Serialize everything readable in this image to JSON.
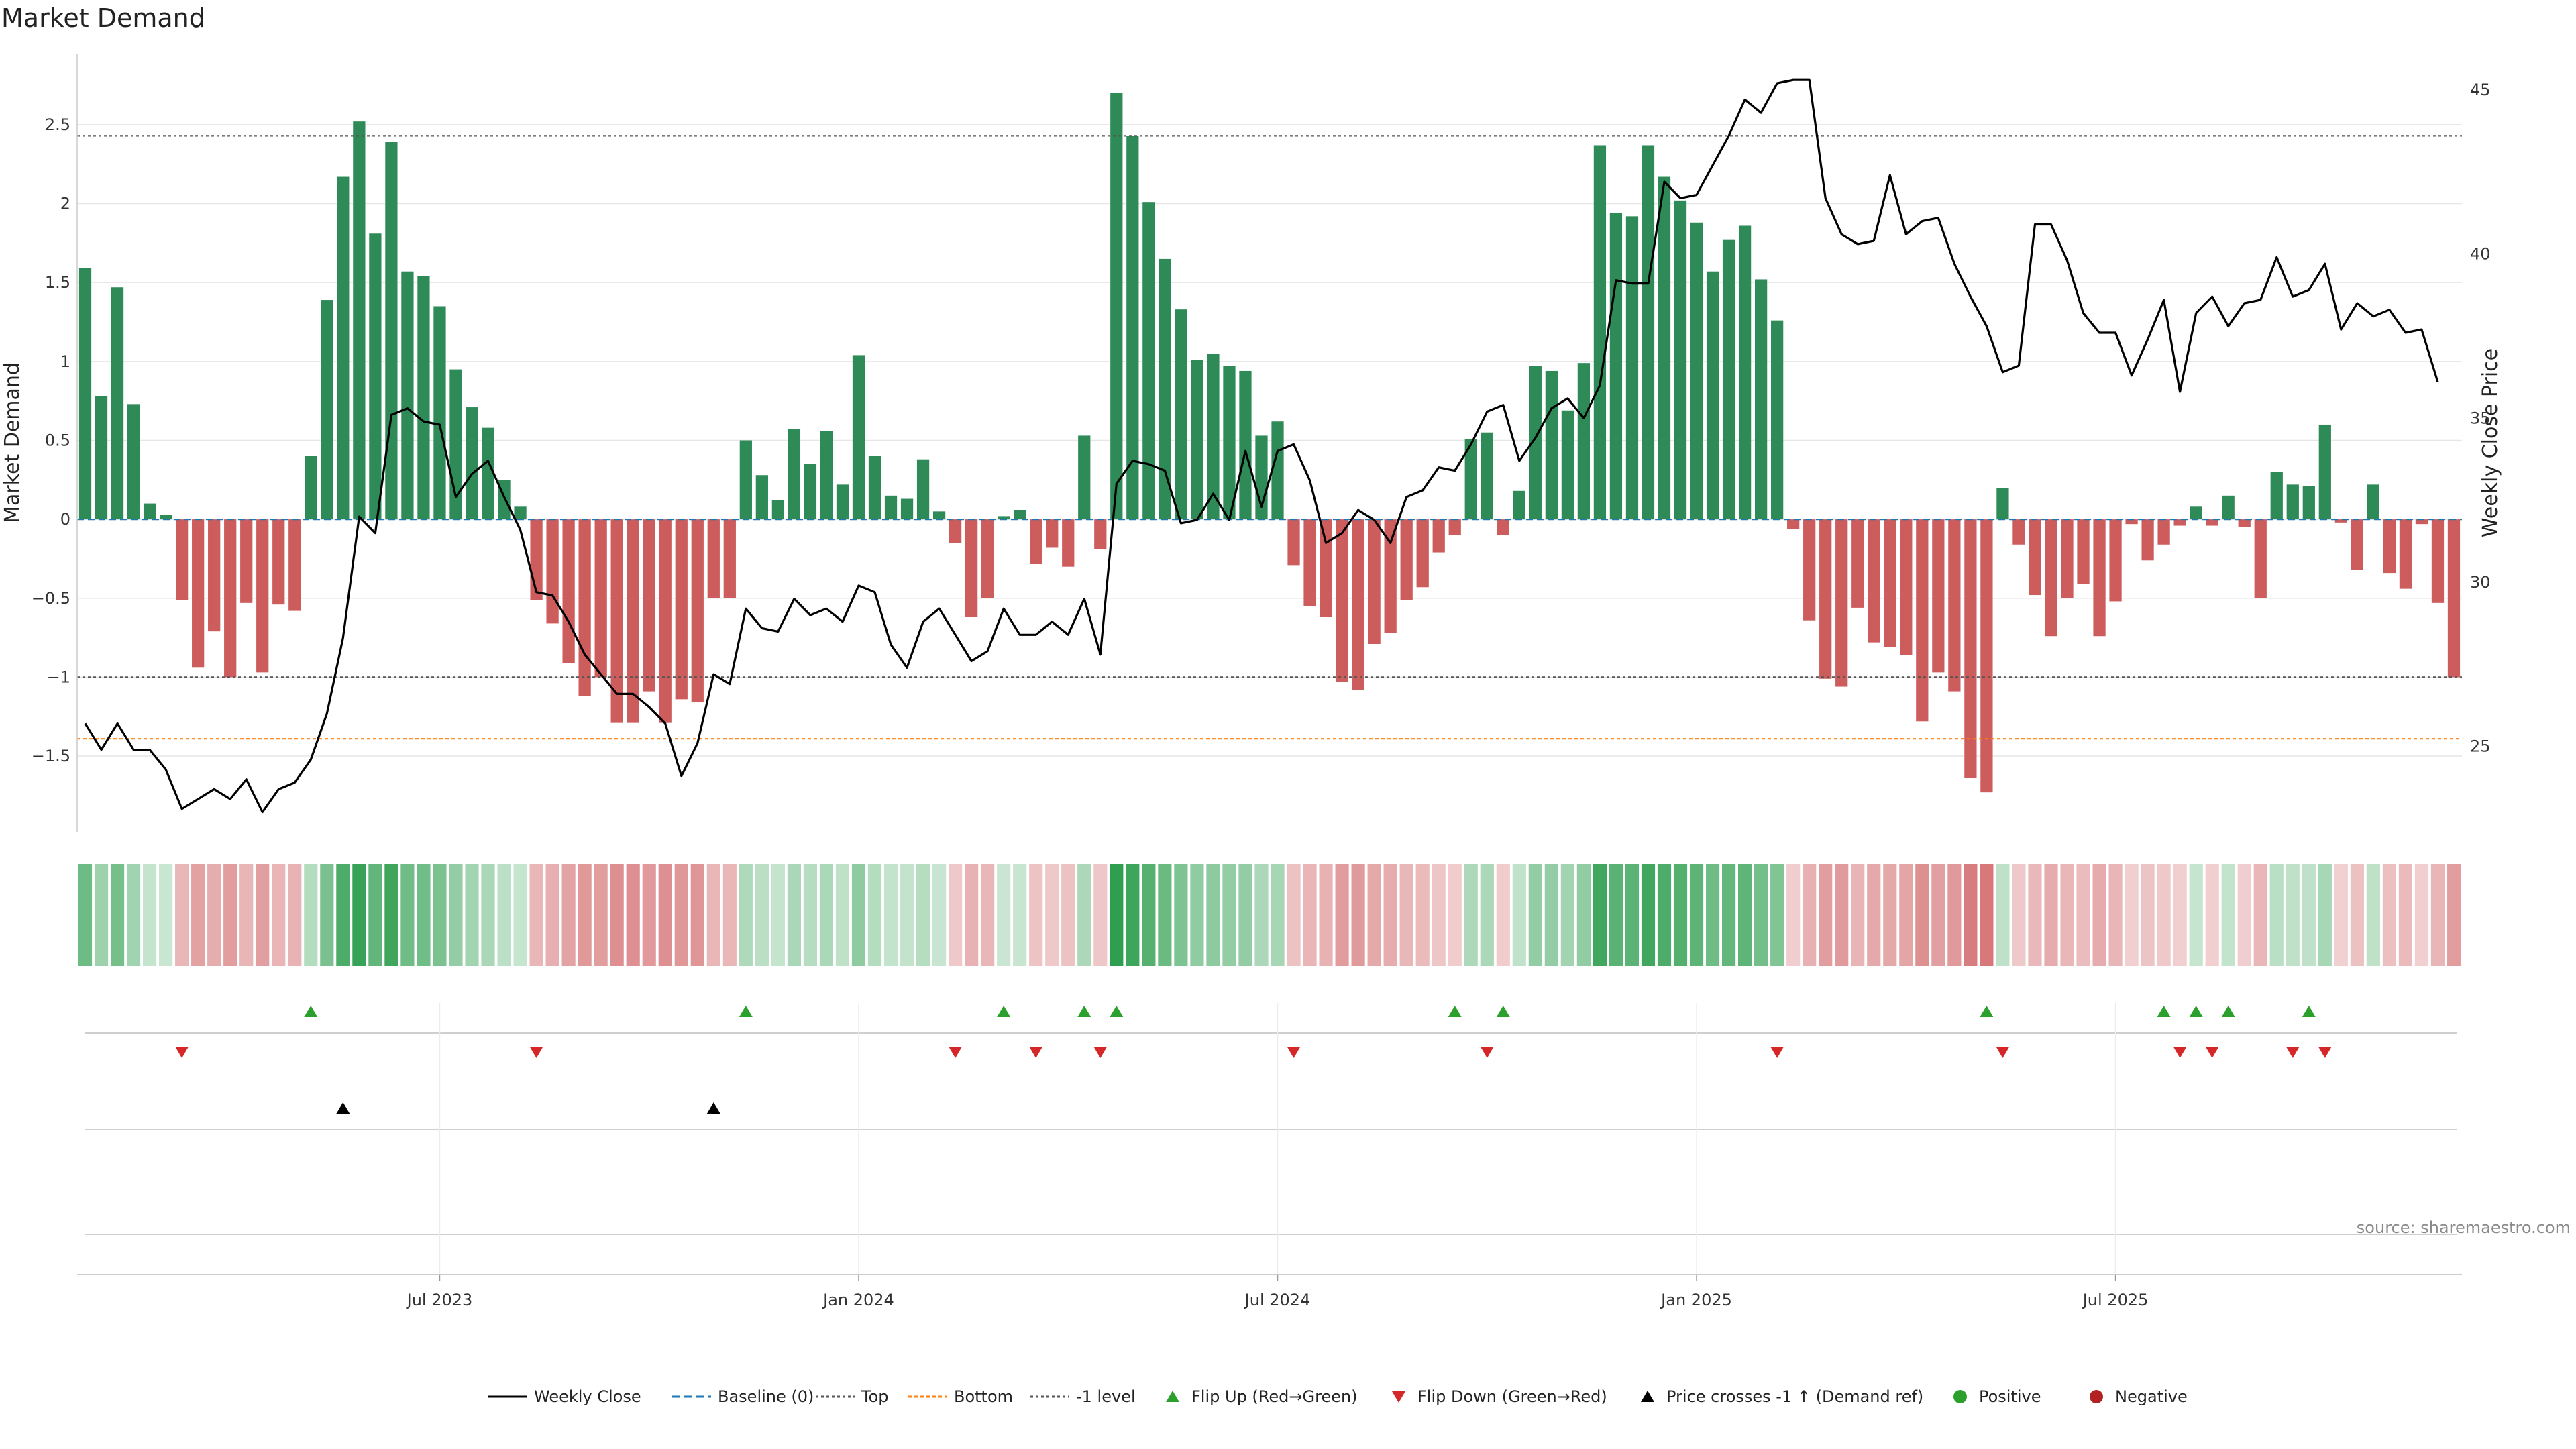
{
  "chart_data": {
    "type": "bar",
    "title": "Market Demand",
    "ylabel": "Market Demand",
    "y2label": "Weekly Close Price",
    "ylim": [
      -1.98,
      2.95
    ],
    "y2lim": [
      22.4,
      46.1
    ],
    "yticks": [
      -1.5,
      -1,
      -0.5,
      0,
      0.5,
      1,
      1.5,
      2,
      2.5
    ],
    "ytick_labels": [
      "−1.5",
      "−1",
      "−0.5",
      "0",
      "0.5",
      "1",
      "1.5",
      "2",
      "2.5"
    ],
    "y2ticks": [
      25,
      30,
      35,
      40,
      45
    ],
    "y2tick_labels": [
      "25",
      "30",
      "35",
      "40",
      "45"
    ],
    "x_ticks": [
      {
        "week": 22,
        "label": "Jul 2023"
      },
      {
        "week": 48,
        "label": "Jan 2024"
      },
      {
        "week": 74,
        "label": "Jul 2024"
      },
      {
        "week": 100,
        "label": "Jan 2025"
      },
      {
        "week": 126,
        "label": "Jul 2025"
      }
    ],
    "reference_lines": [
      {
        "name": "Baseline (0)",
        "value": 0,
        "color": "#1f77b4"
      },
      {
        "name": "Top",
        "value": 2.43,
        "color": "#555555"
      },
      {
        "name": "Bottom",
        "value": -1.39,
        "color": "#ff7f0e"
      },
      {
        "name": "-1 level",
        "value": -1,
        "color": "#555555"
      }
    ],
    "colors": {
      "positive": "#2e8b57",
      "negative": "#cd5c5c",
      "price": "#000000",
      "flip_up": "#2ca02c",
      "flip_down": "#d62728",
      "cross": "#000000"
    },
    "demand": [
      1.59,
      0.78,
      1.47,
      0.73,
      0.1,
      0.03,
      -0.51,
      -0.94,
      -0.71,
      -1.0,
      -0.53,
      -0.97,
      -0.54,
      -0.58,
      0.4,
      1.39,
      2.17,
      2.52,
      1.81,
      2.39,
      1.57,
      1.54,
      1.35,
      0.95,
      0.71,
      0.58,
      0.25,
      0.08,
      -0.51,
      -0.66,
      -0.91,
      -1.12,
      -1.0,
      -1.29,
      -1.29,
      -1.09,
      -1.29,
      -1.14,
      -1.16,
      -0.5,
      -0.5,
      0.5,
      0.28,
      0.12,
      0.57,
      0.35,
      0.56,
      0.22,
      1.04,
      0.4,
      0.15,
      0.13,
      0.38,
      0.05,
      -0.15,
      -0.62,
      -0.5,
      0.02,
      0.06,
      -0.28,
      -0.18,
      -0.3,
      0.53,
      -0.19,
      2.7,
      2.43,
      2.01,
      1.65,
      1.33,
      1.01,
      1.05,
      0.97,
      0.94,
      0.53,
      0.62,
      -0.29,
      -0.55,
      -0.62,
      -1.03,
      -1.08,
      -0.79,
      -0.72,
      -0.51,
      -0.43,
      -0.21,
      -0.1,
      0.51,
      0.55,
      -0.1,
      0.18,
      0.97,
      0.94,
      0.69,
      0.99,
      2.37,
      1.94,
      1.92,
      2.37,
      2.17,
      2.02,
      1.88,
      1.57,
      1.77,
      1.86,
      1.52,
      1.26,
      -0.06,
      -0.64,
      -1.01,
      -1.06,
      -0.56,
      -0.78,
      -0.81,
      -0.86,
      -1.28,
      -0.97,
      -1.09,
      -1.64,
      -1.73,
      0.2,
      -0.16,
      -0.48,
      -0.74,
      -0.5,
      -0.41,
      -0.74,
      -0.52,
      -0.03,
      -0.26,
      -0.16,
      -0.04,
      0.08,
      -0.04,
      0.15,
      -0.05,
      -0.5,
      0.3,
      0.22,
      0.21,
      0.6,
      -0.02,
      -0.32,
      0.22,
      -0.34,
      -0.44,
      -0.03,
      -0.53,
      -1.0
    ],
    "price": [
      25.7,
      24.9,
      25.7,
      24.9,
      24.9,
      24.3,
      23.1,
      23.4,
      23.7,
      23.4,
      24.0,
      23.0,
      23.7,
      23.9,
      24.6,
      26.0,
      28.3,
      32.0,
      31.5,
      35.1,
      35.3,
      34.9,
      34.8,
      32.6,
      33.3,
      33.7,
      32.6,
      31.6,
      29.7,
      29.6,
      28.8,
      27.8,
      27.2,
      26.6,
      26.6,
      26.2,
      25.7,
      24.1,
      25.1,
      27.2,
      26.9,
      29.2,
      28.6,
      28.5,
      29.5,
      29.0,
      29.2,
      28.8,
      29.9,
      29.7,
      28.1,
      27.4,
      28.8,
      29.2,
      28.4,
      27.6,
      27.9,
      29.2,
      28.4,
      28.4,
      28.8,
      28.4,
      29.5,
      27.8,
      33.0,
      33.7,
      33.6,
      33.4,
      31.8,
      31.9,
      32.7,
      31.9,
      34.0,
      32.3,
      34.0,
      34.2,
      33.1,
      31.2,
      31.5,
      32.2,
      31.9,
      31.2,
      32.6,
      32.8,
      33.5,
      33.4,
      34.2,
      35.2,
      35.4,
      33.7,
      34.4,
      35.3,
      35.6,
      35.0,
      36.0,
      39.2,
      39.1,
      39.1,
      42.2,
      41.7,
      41.8,
      42.7,
      43.6,
      44.7,
      44.3,
      45.2,
      45.3,
      45.3,
      41.7,
      40.6,
      40.3,
      40.4,
      42.4,
      40.6,
      41.0,
      41.1,
      39.7,
      38.7,
      37.8,
      36.4,
      36.6,
      40.9,
      40.9,
      39.8,
      38.2,
      37.6,
      37.6,
      36.3,
      37.4,
      38.6,
      35.8,
      38.2,
      38.7,
      37.8,
      38.5,
      38.6,
      39.9,
      38.7,
      38.9,
      39.7,
      37.7,
      38.5,
      38.1,
      38.3,
      37.6,
      37.7,
      36.1
    ],
    "flip_up_weeks": [
      14,
      41,
      57,
      62,
      64,
      85,
      88,
      118,
      129,
      131,
      133,
      138
    ],
    "flip_down_weeks": [
      6,
      28,
      54,
      59,
      63,
      75,
      87,
      105,
      119,
      130,
      132,
      137,
      139
    ],
    "cross_weeks": [
      16,
      39
    ],
    "legend": [
      "Weekly Close",
      "Baseline (0)",
      "Top",
      "Bottom",
      "-1 level",
      "Flip Up (Red→Green)",
      "Flip Down (Green→Red)",
      "Price crosses -1 ↑ (Demand ref)",
      "Positive",
      "Negative"
    ],
    "source": "source: sharemaestro.com"
  }
}
